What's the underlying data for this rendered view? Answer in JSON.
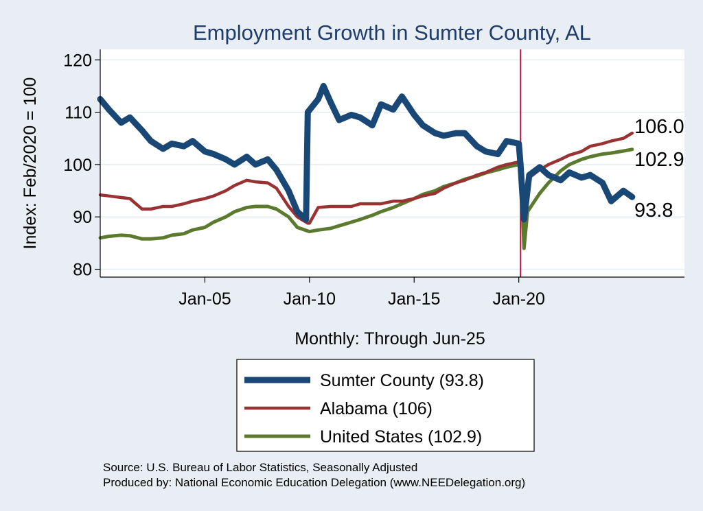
{
  "chart_data": {
    "type": "line",
    "title": "Employment Growth in Sumter  County, AL",
    "xlabel": "Monthly: Through Jun-25",
    "ylabel": "Index: Feb/2020 = 100",
    "ylim": [
      78.5,
      122
    ],
    "xlim": [
      "Jan-00",
      "Dec-27"
    ],
    "x_ticks": [
      "Jan-05",
      "Jan-10",
      "Jan-15",
      "Jan-20"
    ],
    "y_ticks": [
      80,
      90,
      100,
      110,
      120
    ],
    "grid": true,
    "reference_line": {
      "x": "Feb-20",
      "color": "#c0143c"
    },
    "legend_position": "bottom",
    "end_labels": [
      "106.0",
      "102.9",
      "93.8"
    ],
    "series": [
      {
        "name": "Sumter  County (93.8)",
        "color": "#1a4876",
        "points": [
          [
            "Jan-00",
            112.5
          ],
          [
            "Jun-00",
            110.5
          ],
          [
            "Jan-01",
            108
          ],
          [
            "Jun-01",
            109
          ],
          [
            "Jan-02",
            106.5
          ],
          [
            "Jun-02",
            104.5
          ],
          [
            "Jan-03",
            103
          ],
          [
            "Jun-03",
            104
          ],
          [
            "Jan-04",
            103.5
          ],
          [
            "Jun-04",
            104.5
          ],
          [
            "Jan-05",
            102.5
          ],
          [
            "Jun-05",
            102
          ],
          [
            "Jan-06",
            101
          ],
          [
            "Jun-06",
            100
          ],
          [
            "Jan-07",
            101.5
          ],
          [
            "Jun-07",
            100
          ],
          [
            "Jan-08",
            101
          ],
          [
            "Jun-08",
            99
          ],
          [
            "Jan-09",
            95
          ],
          [
            "Jun-09",
            91
          ],
          [
            "Nov-09",
            89.5
          ],
          [
            "Dec-09",
            110
          ],
          [
            "Jun-10",
            112.5
          ],
          [
            "Sep-10",
            115
          ],
          [
            "Jan-11",
            112
          ],
          [
            "Jun-11",
            108.5
          ],
          [
            "Jan-12",
            109.5
          ],
          [
            "Jun-12",
            109
          ],
          [
            "Jan-13",
            107.5
          ],
          [
            "Jun-13",
            111.5
          ],
          [
            "Jan-14",
            110.5
          ],
          [
            "Jun-14",
            113
          ],
          [
            "Jan-15",
            109.5
          ],
          [
            "Jun-15",
            107.5
          ],
          [
            "Jan-16",
            106
          ],
          [
            "Jun-16",
            105.5
          ],
          [
            "Jan-17",
            106
          ],
          [
            "Jun-17",
            106
          ],
          [
            "Jan-18",
            103.5
          ],
          [
            "Jun-18",
            102.5
          ],
          [
            "Jan-19",
            102
          ],
          [
            "Jun-19",
            104.5
          ],
          [
            "Jan-20",
            104
          ],
          [
            "Feb-20",
            100
          ],
          [
            "Apr-20",
            89.5
          ],
          [
            "Jul-20",
            98
          ],
          [
            "Jan-21",
            99.5
          ],
          [
            "Jun-21",
            98
          ],
          [
            "Jan-22",
            97
          ],
          [
            "Jun-22",
            98.5
          ],
          [
            "Jan-23",
            97.5
          ],
          [
            "Jun-23",
            98
          ],
          [
            "Jan-24",
            96.5
          ],
          [
            "Jun-24",
            93
          ],
          [
            "Jan-25",
            95
          ],
          [
            "Jun-25",
            93.8
          ]
        ]
      },
      {
        "name": "Alabama (106)",
        "color": "#993333",
        "points": [
          [
            "Jan-00",
            94.2
          ],
          [
            "Jun-00",
            94
          ],
          [
            "Jan-01",
            93.7
          ],
          [
            "Jun-01",
            93.5
          ],
          [
            "Jan-02",
            91.5
          ],
          [
            "Jun-02",
            91.5
          ],
          [
            "Jan-03",
            92
          ],
          [
            "Jun-03",
            92
          ],
          [
            "Jan-04",
            92.5
          ],
          [
            "Jun-04",
            93
          ],
          [
            "Jan-05",
            93.5
          ],
          [
            "Jun-05",
            94
          ],
          [
            "Jan-06",
            95
          ],
          [
            "Jun-06",
            96
          ],
          [
            "Jan-07",
            97
          ],
          [
            "Jun-07",
            96.7
          ],
          [
            "Jan-08",
            96.5
          ],
          [
            "Jun-08",
            95.5
          ],
          [
            "Jan-09",
            92
          ],
          [
            "Jun-09",
            90
          ],
          [
            "Dec-09",
            88.8
          ],
          [
            "Jan-10",
            88.8
          ],
          [
            "Jun-10",
            91.8
          ],
          [
            "Jan-11",
            92
          ],
          [
            "Jun-11",
            92
          ],
          [
            "Jan-12",
            92
          ],
          [
            "Jun-12",
            92.5
          ],
          [
            "Jan-13",
            92.5
          ],
          [
            "Jun-13",
            92.5
          ],
          [
            "Jan-14",
            93
          ],
          [
            "Jun-14",
            93
          ],
          [
            "Jan-15",
            93.5
          ],
          [
            "Jun-15",
            94
          ],
          [
            "Jan-16",
            94.5
          ],
          [
            "Jun-16",
            95.5
          ],
          [
            "Jan-17",
            96.5
          ],
          [
            "Jun-17",
            97
          ],
          [
            "Jan-18",
            98
          ],
          [
            "Jun-18",
            98.5
          ],
          [
            "Jan-19",
            99.5
          ],
          [
            "Jun-19",
            100
          ],
          [
            "Jan-20",
            100.5
          ],
          [
            "Feb-20",
            100
          ],
          [
            "Apr-20",
            89.5
          ],
          [
            "Jul-20",
            97.5
          ],
          [
            "Jan-21",
            99
          ],
          [
            "Jun-21",
            100
          ],
          [
            "Jan-22",
            101
          ],
          [
            "Jun-22",
            101.8
          ],
          [
            "Jan-23",
            102.5
          ],
          [
            "Jun-23",
            103.5
          ],
          [
            "Jan-24",
            104
          ],
          [
            "Jun-24",
            104.5
          ],
          [
            "Jan-25",
            105
          ],
          [
            "Jun-25",
            106
          ]
        ]
      },
      {
        "name": "United States (102.9)",
        "color": "#5b7a2e",
        "points": [
          [
            "Jan-00",
            86
          ],
          [
            "Jun-00",
            86.3
          ],
          [
            "Jan-01",
            86.5
          ],
          [
            "Jun-01",
            86.4
          ],
          [
            "Jan-02",
            85.8
          ],
          [
            "Jun-02",
            85.8
          ],
          [
            "Jan-03",
            86
          ],
          [
            "Jun-03",
            86.5
          ],
          [
            "Jan-04",
            86.8
          ],
          [
            "Jun-04",
            87.5
          ],
          [
            "Jan-05",
            88
          ],
          [
            "Jun-05",
            89
          ],
          [
            "Jan-06",
            90
          ],
          [
            "Jun-06",
            91
          ],
          [
            "Jan-07",
            91.8
          ],
          [
            "Jun-07",
            92
          ],
          [
            "Jan-08",
            92
          ],
          [
            "Jun-08",
            91.5
          ],
          [
            "Jan-09",
            90
          ],
          [
            "Jun-09",
            88
          ],
          [
            "Jan-10",
            87.2
          ],
          [
            "Jun-10",
            87.5
          ],
          [
            "Jan-11",
            87.8
          ],
          [
            "Jun-11",
            88.3
          ],
          [
            "Jan-12",
            89
          ],
          [
            "Jun-12",
            89.5
          ],
          [
            "Jan-13",
            90.3
          ],
          [
            "Jun-13",
            91
          ],
          [
            "Jan-14",
            91.8
          ],
          [
            "Jun-14",
            92.5
          ],
          [
            "Jan-15",
            93.5
          ],
          [
            "Jun-15",
            94.3
          ],
          [
            "Jan-16",
            95
          ],
          [
            "Jun-16",
            95.8
          ],
          [
            "Jan-17",
            96.5
          ],
          [
            "Jun-17",
            97.2
          ],
          [
            "Jan-18",
            97.8
          ],
          [
            "Jun-18",
            98.4
          ],
          [
            "Jan-19",
            99
          ],
          [
            "Jun-19",
            99.5
          ],
          [
            "Jan-20",
            100
          ],
          [
            "Feb-20",
            100
          ],
          [
            "Apr-20",
            84
          ],
          [
            "Jun-20",
            91
          ],
          [
            "Jan-21",
            94.5
          ],
          [
            "Jun-21",
            96.5
          ],
          [
            "Jan-22",
            98.8
          ],
          [
            "Jun-22",
            100
          ],
          [
            "Jan-23",
            101
          ],
          [
            "Jun-23",
            101.5
          ],
          [
            "Jan-24",
            102
          ],
          [
            "Jun-24",
            102.2
          ],
          [
            "Jan-25",
            102.6
          ],
          [
            "Jun-25",
            102.9
          ]
        ]
      }
    ]
  },
  "footer": {
    "source": "Source: U.S. Bureau of Labor Statistics, Seasonally Adjusted",
    "produced": "Produced by: National Economic Education Delegation (www.NEEDelegation.org)"
  }
}
